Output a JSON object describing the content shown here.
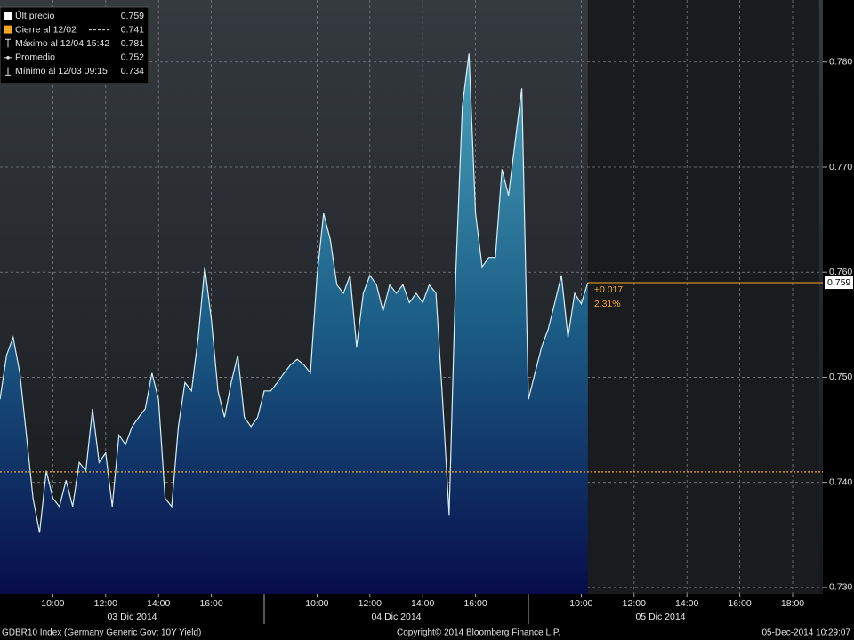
{
  "chart_data": {
    "type": "area",
    "series": [
      {
        "name": "Últ precio",
        "color": "#d6eef5",
        "values": [
          0.7479,
          0.7521,
          0.7538,
          0.7504,
          0.7445,
          0.7385,
          0.7352,
          0.7411,
          0.7385,
          0.7377,
          0.7402,
          0.7377,
          0.7419,
          0.7411,
          0.747,
          0.7419,
          0.7428,
          0.7377,
          0.7445,
          0.7436,
          0.7453,
          0.7462,
          0.747,
          0.7504,
          0.7479,
          0.7385,
          0.7377,
          0.7453,
          0.7495,
          0.7487,
          0.7538,
          0.7605,
          0.7555,
          0.7487,
          0.7462,
          0.7495,
          0.7521,
          0.7462,
          0.7453,
          0.7462,
          0.7487,
          0.7487,
          0.7495,
          0.7504,
          0.7512,
          0.7517,
          0.7512,
          0.7504,
          0.7597,
          0.7656,
          0.7631,
          0.7588,
          0.758,
          0.7597,
          0.7529,
          0.758,
          0.7597,
          0.7588,
          0.7563,
          0.7588,
          0.758,
          0.7588,
          0.7571,
          0.758,
          0.7571,
          0.7588,
          0.758,
          0.7479,
          0.7369,
          0.7597,
          0.7758,
          0.7808,
          0.7656,
          0.7605,
          0.7614,
          0.7614,
          0.7698,
          0.7673,
          0.7724,
          0.7775,
          0.7479,
          0.7504,
          0.7529,
          0.7546,
          0.7571,
          0.7597,
          0.7538,
          0.758,
          0.757,
          0.759,
          null,
          null,
          null,
          null,
          null,
          null,
          null,
          null,
          null,
          null,
          null,
          null,
          null,
          null,
          null,
          null,
          null,
          null,
          null,
          null,
          null,
          null,
          null,
          null,
          null,
          null,
          null,
          null,
          null,
          null,
          null
        ]
      }
    ],
    "categories": [
      null,
      null,
      null,
      null,
      null,
      null,
      null,
      null,
      "10:00",
      null,
      null,
      null,
      null,
      null,
      null,
      null,
      "12:00",
      null,
      null,
      null,
      null,
      null,
      null,
      null,
      "14:00",
      null,
      null,
      null,
      null,
      null,
      null,
      null,
      "16:00",
      null,
      null,
      null,
      null,
      null,
      null,
      null,
      null,
      null,
      null,
      null,
      null,
      null,
      null,
      null,
      "10:00",
      null,
      null,
      null,
      null,
      null,
      null,
      null,
      "12:00",
      null,
      null,
      null,
      null,
      null,
      null,
      null,
      "14:00",
      null,
      null,
      null,
      null,
      null,
      null,
      null,
      "16:00",
      null,
      null,
      null,
      null,
      null,
      null,
      null,
      null,
      null,
      null,
      null,
      null,
      null,
      null,
      null,
      "10:00",
      null,
      null,
      null,
      null,
      null,
      null,
      null,
      "12:00",
      null,
      null,
      null,
      null,
      null,
      null,
      null,
      "14:00",
      null,
      null,
      null,
      null,
      null,
      null,
      null,
      "16:00",
      null,
      null,
      null,
      null,
      null,
      null,
      null,
      "18:00"
    ],
    "day_labels": [
      "03 Dic 2014",
      "04 Dic 2014",
      "05 Dic 2014"
    ],
    "ylim": [
      0.7294,
      0.7859
    ],
    "yticks": [
      {
        "value": 0.73,
        "label": "0.730"
      },
      {
        "value": 0.74,
        "label": "0.740"
      },
      {
        "value": 0.75,
        "label": "0.750"
      },
      {
        "value": 0.76,
        "label": "0.760"
      },
      {
        "value": 0.77,
        "label": "0.770"
      },
      {
        "value": 0.78,
        "label": "0.780"
      }
    ],
    "grid": true,
    "last_value": 0.759,
    "previous_close": 0.741,
    "reference_color": "#f5a623",
    "change": {
      "value": 0.017,
      "label": "+0.017"
    },
    "change_percent": {
      "value": 2.31,
      "label": "2.31%"
    },
    "legend": [
      {
        "label": "Últ precio",
        "value": 0.759
      },
      {
        "label": "Cierre al 12/02",
        "value": 0.741
      },
      {
        "label": "Máximo al 12/04 15:42",
        "value": 0.781
      },
      {
        "label": "Promedio",
        "value": 0.752
      },
      {
        "label": "Mínimo al 12/03 09:15",
        "value": 0.734
      }
    ],
    "footer": {
      "left": "GDBR10 Index (Germany Generic Govt 10Y Yield)",
      "center": "Copyright© 2014 Bloomberg Finance L.P.",
      "right": "05-Dec-2014 10:29:07"
    }
  }
}
